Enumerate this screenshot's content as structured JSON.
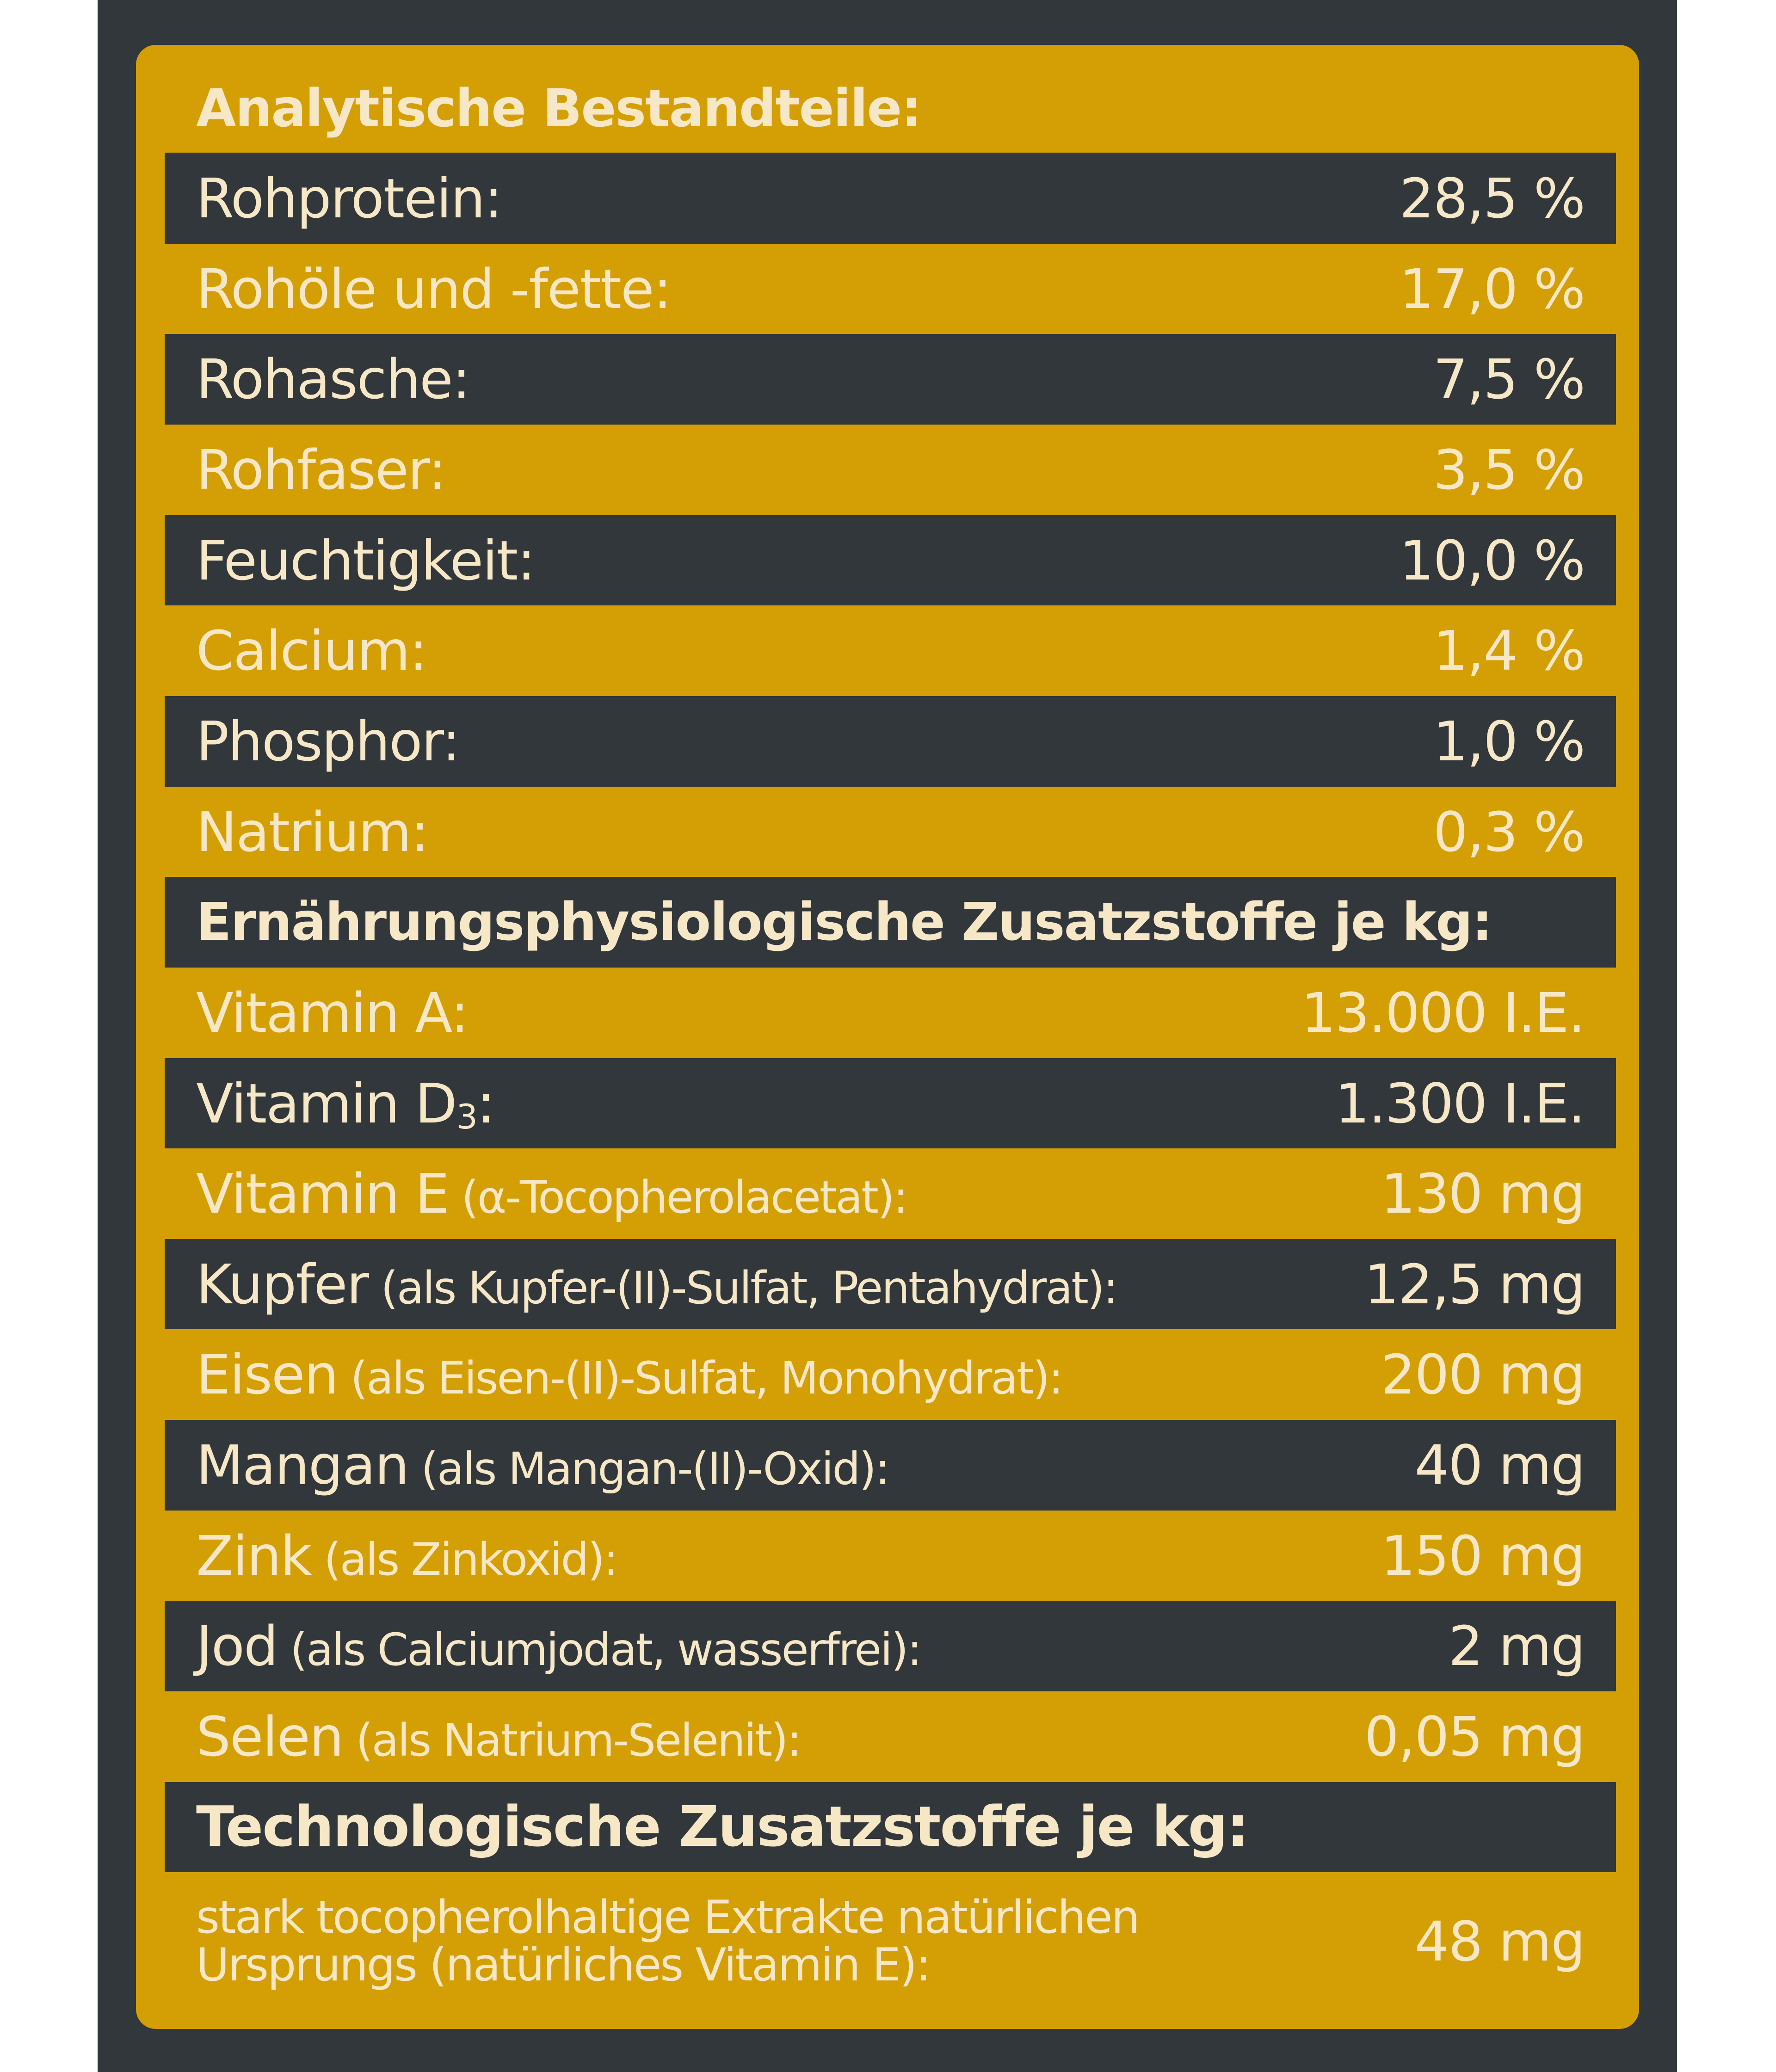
{
  "colors": {
    "background_dark": "#32373b",
    "accent_gold": "#d49f05",
    "text_cream": "#f6e7c7"
  },
  "analytical": {
    "heading": "Analytische Bestandteile:",
    "rows": [
      {
        "label": "Rohprotein:",
        "value": "28,5 %"
      },
      {
        "label": "Rohöle und -fette:",
        "value": "17,0 %"
      },
      {
        "label": "Rohasche:",
        "value": "7,5 %"
      },
      {
        "label": "Rohfaser:",
        "value": "3,5 %"
      },
      {
        "label": "Feuchtigkeit:",
        "value": "10,0 %"
      },
      {
        "label": "Calcium:",
        "value": "1,4 %"
      },
      {
        "label": "Phosphor:",
        "value": "1,0 %"
      },
      {
        "label": "Natrium:",
        "value": "0,3 %"
      }
    ]
  },
  "nutritional_additives": {
    "heading": "Ernährungsphysiologische Zusatzstoffe je kg:",
    "rows": [
      {
        "label": "Vitamin A:",
        "detail": "",
        "value": "13.000 I.E."
      },
      {
        "label": "Vitamin D",
        "label_sub": "3",
        "label_suffix": ":",
        "detail": "",
        "value": "1.300 I.E."
      },
      {
        "label": "Vitamin E",
        "detail": " (α-Tocopherolacetat):",
        "value": "130 mg"
      },
      {
        "label": "Kupfer",
        "detail": " (als Kupfer-(II)-Sulfat, Pentahydrat):",
        "value": "12,5 mg"
      },
      {
        "label": "Eisen",
        "detail": " (als Eisen-(II)-Sulfat, Monohydrat):",
        "value": "200 mg"
      },
      {
        "label": "Mangan",
        "detail": " (als Mangan-(II)-Oxid):",
        "value": "40 mg"
      },
      {
        "label": "Zink",
        "detail": " (als Zinkoxid):",
        "value": "150 mg"
      },
      {
        "label": "Jod",
        "detail": " (als Calciumjodat, wasserfrei):",
        "value": "2 mg"
      },
      {
        "label": "Selen",
        "detail": " (als Natrium-Selenit):",
        "value": "0,05 mg"
      }
    ]
  },
  "technological_additives": {
    "heading": "Technologische Zusatzstoffe je kg:",
    "rows": [
      {
        "label": "stark tocopherolhaltige Extrakte natürlichen Ursprungs (natürliches Vitamin E):",
        "value": "48 mg"
      }
    ]
  }
}
